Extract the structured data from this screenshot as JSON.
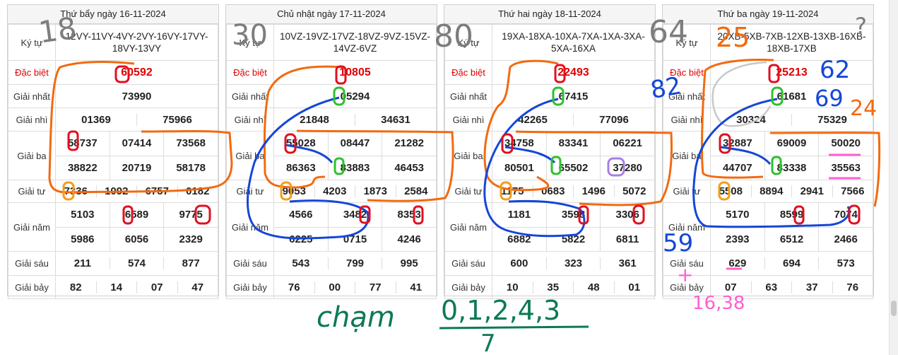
{
  "days": [
    {
      "header": "Thứ bẩy ngày 16-11-2024",
      "ky_tu_label": "Ký tự",
      "ky_tu": "12VY-11VY-4VY-2VY-16VY-17VY-18VY-13VY",
      "dac_biet_label": "Đặc biệt",
      "dac_biet": "60592",
      "nhat_label": "Giải nhất",
      "nhat": "73990",
      "nhi_label": "Giải nhì",
      "nhi": [
        "01369",
        "75966"
      ],
      "ba_label": "Giải ba",
      "ba": [
        "58737",
        "07414",
        "73568",
        "38822",
        "20719",
        "58178"
      ],
      "tu_label": "Giải tư",
      "tu": [
        "7336",
        "1092",
        "6757",
        "0182"
      ],
      "nam_label": "Giải năm",
      "nam": [
        "5103",
        "6589",
        "9775",
        "5986",
        "6056",
        "2329"
      ],
      "sau_label": "Giải sáu",
      "sau": [
        "211",
        "574",
        "877"
      ],
      "bay_label": "Giải bảy",
      "bay": [
        "82",
        "14",
        "07",
        "47"
      ]
    },
    {
      "header": "Chủ nhật ngày 17-11-2024",
      "ky_tu_label": "Ký tự",
      "ky_tu": "10VZ-19VZ-17VZ-18VZ-9VZ-15VZ-14VZ-6VZ",
      "dac_biet_label": "Đặc biệt",
      "dac_biet": "10805",
      "nhat_label": "Giải nhất",
      "nhat": "05294",
      "nhi_label": "Giải nhì",
      "nhi": [
        "21848",
        "34631"
      ],
      "ba_label": "Giải ba",
      "ba": [
        "55028",
        "08447",
        "21282",
        "86363",
        "83883",
        "46453"
      ],
      "tu_label": "Giải tư",
      "tu": [
        "9053",
        "4203",
        "1873",
        "2584"
      ],
      "nam_label": "Giải năm",
      "nam": [
        "4566",
        "3482",
        "8353",
        "6225",
        "0715",
        "4246"
      ],
      "sau_label": "Giải sáu",
      "sau": [
        "543",
        "799",
        "995"
      ],
      "bay_label": "Giải bảy",
      "bay": [
        "76",
        "00",
        "77",
        "41"
      ]
    },
    {
      "header": "Thứ hai ngày 18-11-2024",
      "ky_tu_label": "Ký tự",
      "ky_tu": "19XA-18XA-10XA-7XA-1XA-3XA-5XA-16XA",
      "dac_biet_label": "Đặc biệt",
      "dac_biet": "22493",
      "nhat_label": "Giải nhất",
      "nhat": "67415",
      "nhi_label": "Giải nhì",
      "nhi": [
        "42265",
        "77096"
      ],
      "ba_label": "Giải ba",
      "ba": [
        "34758",
        "83341",
        "06221",
        "80501",
        "65502",
        "37280"
      ],
      "tu_label": "Giải tư",
      "tu": [
        "1175",
        "0683",
        "1496",
        "5072"
      ],
      "nam_label": "Giải năm",
      "nam": [
        "1181",
        "3598",
        "3306",
        "6882",
        "5822",
        "6811"
      ],
      "sau_label": "Giải sáu",
      "sau": [
        "600",
        "323",
        "361"
      ],
      "bay_label": "Giải bảy",
      "bay": [
        "10",
        "35",
        "48",
        "01"
      ]
    },
    {
      "header": "Thứ ba ngày 19-11-2024",
      "ky_tu_label": "Ký tự",
      "ky_tu": "20XB-5XB-7XB-12XB-13XB-16XB-18XB-17XB",
      "dac_biet_label": "Đặc biệt",
      "dac_biet": "25213",
      "nhat_label": "Giải nhất",
      "nhat": "61681",
      "nhi_label": "Giải nhì",
      "nhi": [
        "30324",
        "75329"
      ],
      "ba_label": "Giải ba",
      "ba": [
        "32887",
        "69009",
        "50020",
        "44707",
        "83338",
        "35563"
      ],
      "tu_label": "Giải tư",
      "tu": [
        "5508",
        "8894",
        "2941",
        "7566"
      ],
      "nam_label": "Giải năm",
      "nam": [
        "5170",
        "8599",
        "7074",
        "2393",
        "6512",
        "2466"
      ],
      "sau_label": "Giải sáu",
      "sau": [
        "629",
        "694",
        "573"
      ],
      "bay_label": "Giải bảy",
      "bay": [
        "07",
        "63",
        "37",
        "76"
      ]
    }
  ],
  "annotations": {
    "top_notes": [
      "18",
      "30",
      "80",
      "64",
      "25",
      "?"
    ],
    "blue_notes": [
      "82",
      "62",
      "69",
      "59"
    ],
    "orange_note": "24",
    "pink_notes": [
      "16,38"
    ],
    "bottom_word": "chạm",
    "bottom_numbers": "0,1,2,4,3",
    "bottom_denominator": "7"
  },
  "colors": {
    "orange": "#f26a10",
    "blue": "#1546d8",
    "red": "#e01020",
    "green": "#2ec12e",
    "pink": "#ff5fd0",
    "gray": "#7d7d7d",
    "teal": "#0c7a52"
  }
}
